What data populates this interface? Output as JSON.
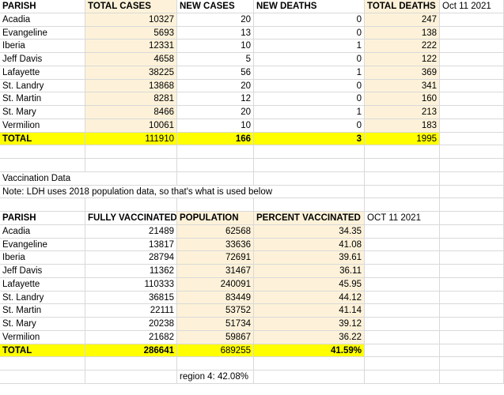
{
  "cases_table": {
    "headers": [
      "PARISH",
      "TOTAL CASES",
      "NEW CASES",
      "NEW DEATHS",
      "TOTAL DEATHS",
      "Oct 11 2021"
    ],
    "rows": [
      [
        "Acadia",
        "10327",
        "20",
        "0",
        "247"
      ],
      [
        "Evangeline",
        "5693",
        "13",
        "0",
        "138"
      ],
      [
        "Iberia",
        "12331",
        "10",
        "1",
        "222"
      ],
      [
        "Jeff Davis",
        "4658",
        "5",
        "0",
        "122"
      ],
      [
        "Lafayette",
        "38225",
        "56",
        "1",
        "369"
      ],
      [
        "St. Landry",
        "13868",
        "20",
        "0",
        "341"
      ],
      [
        "St. Martin",
        "8281",
        "12",
        "0",
        "160"
      ],
      [
        "St. Mary",
        "8466",
        "20",
        "1",
        "213"
      ],
      [
        "Vermilion",
        "10061",
        "10",
        "0",
        "183"
      ]
    ],
    "total": [
      "TOTAL",
      "111910",
      "166",
      "3",
      "1995"
    ]
  },
  "notes": {
    "vaccination_title": "Vaccination Data",
    "ldh_note": "Note: LDH uses 2018 population data, so that's what is used below"
  },
  "vax_table": {
    "headers": [
      "PARISH",
      "FULLY VACCINATED",
      "POPULATION",
      "PERCENT VACCINATED",
      "OCT 11 2021"
    ],
    "rows": [
      [
        "Acadia",
        "21489",
        "62568",
        "34.35"
      ],
      [
        "Evangeline",
        "13817",
        "33636",
        "41.08"
      ],
      [
        "Iberia",
        "28794",
        "72691",
        "39.61"
      ],
      [
        "Jeff Davis",
        "11362",
        "31467",
        "36.11"
      ],
      [
        "Lafayette",
        "110333",
        "240091",
        "45.95"
      ],
      [
        "St. Landry",
        "36815",
        "83449",
        "44.12"
      ],
      [
        "St. Martin",
        "22111",
        "53752",
        "41.14"
      ],
      [
        "St. Mary",
        "20238",
        "51734",
        "39.12"
      ],
      [
        "Vermilion",
        "21682",
        "59867",
        "36.22"
      ]
    ],
    "total": [
      "TOTAL",
      "286641",
      "689255",
      "41.59%"
    ]
  },
  "region_note": "region 4: 42.08%",
  "colors": {
    "tan": "#fdf2d9",
    "yellow": "#ffff00",
    "gridline": "#d9d9d9"
  }
}
